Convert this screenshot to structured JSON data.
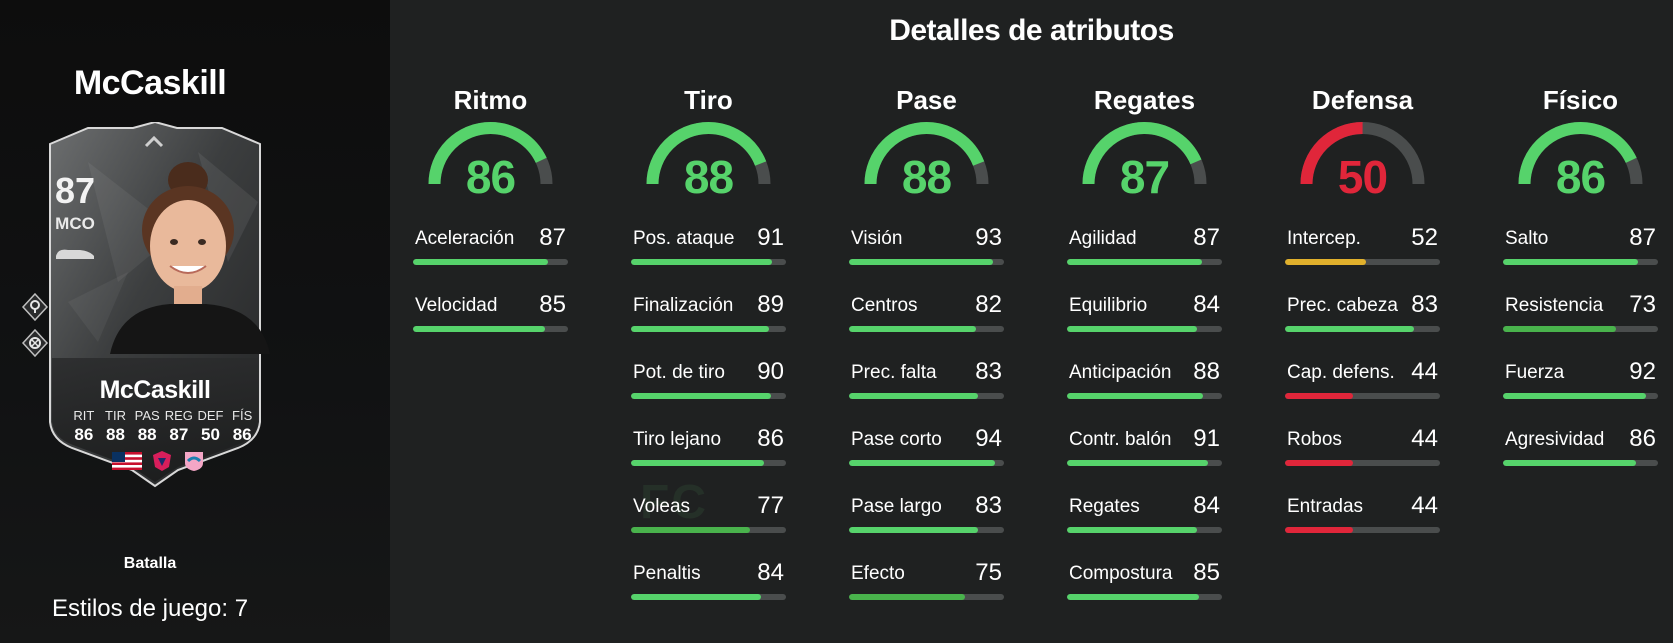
{
  "colors": {
    "high": "#56d36b",
    "mid": "#49b34c",
    "low": "#e0b02c",
    "poor": "#e0263a",
    "track": "#4a4d4d"
  },
  "player": {
    "name_top": "McCaskill",
    "card": {
      "rating": "87",
      "position": "MCO",
      "name": "McCaskill",
      "stat_labels": [
        "RIT",
        "TIR",
        "PAS",
        "REG",
        "DEF",
        "FÍS"
      ],
      "stat_values": [
        "86",
        "88",
        "88",
        "87",
        "50",
        "86"
      ]
    },
    "playstyle": "Batalla",
    "playstyles_count": "Estilos de juego: 7"
  },
  "watermark": "FC",
  "section_title": "Detalles de atributos",
  "categories": [
    {
      "name": "Ritmo",
      "value": 86,
      "color": "#56d36b",
      "attributes": [
        {
          "label": "Aceleración",
          "value": 87,
          "color": "#56d36b"
        },
        {
          "label": "Velocidad",
          "value": 85,
          "color": "#56d36b"
        }
      ]
    },
    {
      "name": "Tiro",
      "value": 88,
      "color": "#56d36b",
      "attributes": [
        {
          "label": "Pos. ataque",
          "value": 91,
          "color": "#56d36b"
        },
        {
          "label": "Finalización",
          "value": 89,
          "color": "#56d36b"
        },
        {
          "label": "Pot. de tiro",
          "value": 90,
          "color": "#56d36b"
        },
        {
          "label": "Tiro lejano",
          "value": 86,
          "color": "#56d36b"
        },
        {
          "label": "Voleas",
          "value": 77,
          "color": "#49b34c"
        },
        {
          "label": "Penaltis",
          "value": 84,
          "color": "#56d36b"
        }
      ]
    },
    {
      "name": "Pase",
      "value": 88,
      "color": "#56d36b",
      "attributes": [
        {
          "label": "Visión",
          "value": 93,
          "color": "#56d36b"
        },
        {
          "label": "Centros",
          "value": 82,
          "color": "#56d36b"
        },
        {
          "label": "Prec. falta",
          "value": 83,
          "color": "#56d36b"
        },
        {
          "label": "Pase corto",
          "value": 94,
          "color": "#56d36b"
        },
        {
          "label": "Pase largo",
          "value": 83,
          "color": "#56d36b"
        },
        {
          "label": "Efecto",
          "value": 75,
          "color": "#49b34c"
        }
      ]
    },
    {
      "name": "Regates",
      "value": 87,
      "color": "#56d36b",
      "attributes": [
        {
          "label": "Agilidad",
          "value": 87,
          "color": "#56d36b"
        },
        {
          "label": "Equilibrio",
          "value": 84,
          "color": "#56d36b"
        },
        {
          "label": "Anticipación",
          "value": 88,
          "color": "#56d36b"
        },
        {
          "label": "Contr. balón",
          "value": 91,
          "color": "#56d36b"
        },
        {
          "label": "Regates",
          "value": 84,
          "color": "#56d36b"
        },
        {
          "label": "Compostura",
          "value": 85,
          "color": "#56d36b"
        }
      ]
    },
    {
      "name": "Defensa",
      "value": 50,
      "color": "#e0263a",
      "attributes": [
        {
          "label": "Intercep.",
          "value": 52,
          "color": "#e0b02c"
        },
        {
          "label": "Prec. cabeza",
          "value": 83,
          "color": "#56d36b"
        },
        {
          "label": "Cap. defens.",
          "value": 44,
          "color": "#e0263a"
        },
        {
          "label": "Robos",
          "value": 44,
          "color": "#e0263a"
        },
        {
          "label": "Entradas",
          "value": 44,
          "color": "#e0263a"
        }
      ]
    },
    {
      "name": "Físico",
      "value": 86,
      "color": "#56d36b",
      "attributes": [
        {
          "label": "Salto",
          "value": 87,
          "color": "#56d36b"
        },
        {
          "label": "Resistencia",
          "value": 73,
          "color": "#49b34c"
        },
        {
          "label": "Fuerza",
          "value": 92,
          "color": "#56d36b"
        },
        {
          "label": "Agresividad",
          "value": 86,
          "color": "#56d36b"
        }
      ]
    }
  ]
}
